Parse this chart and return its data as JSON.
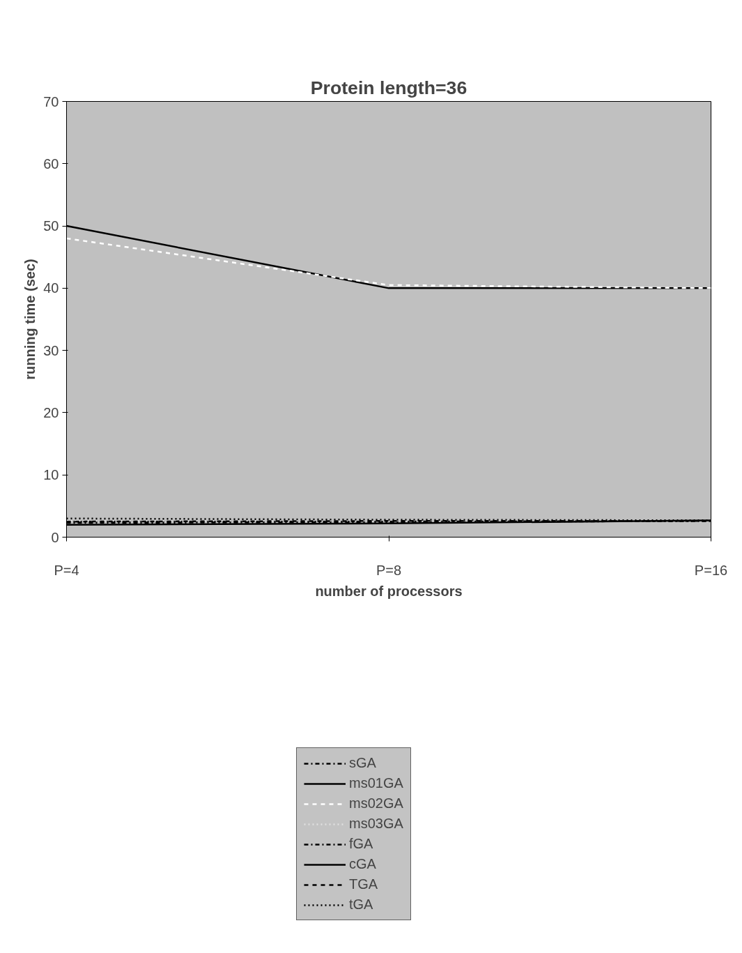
{
  "chart_data": {
    "type": "line",
    "title": "Protein length=36",
    "xlabel": "number of processors",
    "ylabel": "running time (sec)",
    "categories": [
      "P=4",
      "P=8",
      "P=16"
    ],
    "ylim": [
      0,
      70
    ],
    "yticks": [
      0,
      10,
      20,
      30,
      40,
      50,
      60,
      70
    ],
    "grid": false,
    "legend": "bottom",
    "marker": "none",
    "series": [
      {
        "name": "sGA",
        "color": "#000000",
        "line_style": "dashdot",
        "values": [
          2.5,
          2.5,
          2.6
        ]
      },
      {
        "name": "ms01GA",
        "color": "#000000",
        "line_style": "solid",
        "values": [
          50,
          40,
          40
        ]
      },
      {
        "name": "ms02GA",
        "color": "#ffffff",
        "line_style": "dashed",
        "values": [
          48,
          40.5,
          40
        ]
      },
      {
        "name": "ms03GA",
        "color": "#e0e0e0",
        "line_style": "dotted",
        "values": [
          2.6,
          2.6,
          2.7
        ]
      },
      {
        "name": "fGA",
        "color": "#000000",
        "line_style": "dashdot",
        "values": [
          2.3,
          2.4,
          2.6
        ]
      },
      {
        "name": "cGA",
        "color": "#000000",
        "line_style": "solid",
        "values": [
          2,
          2.2,
          2.7
        ]
      },
      {
        "name": "TGA",
        "color": "#000000",
        "line_style": "dashed",
        "values": [
          2.5,
          2.6,
          2.6
        ]
      },
      {
        "name": "tGA",
        "color": "#000000",
        "line_style": "dotted",
        "values": [
          3,
          2.8,
          2.7
        ]
      }
    ]
  }
}
